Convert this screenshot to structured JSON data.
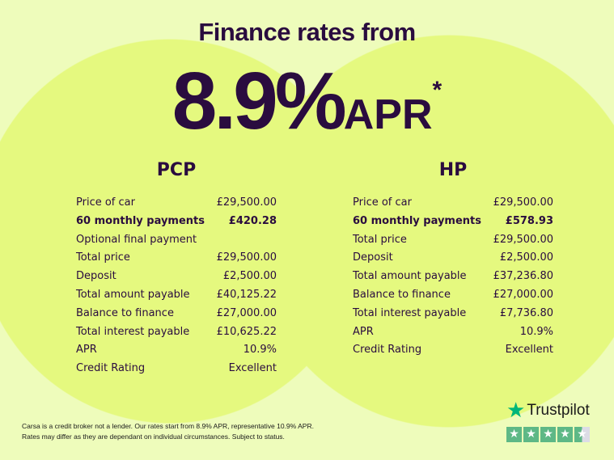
{
  "header": {
    "title": "Finance rates from",
    "rate": "8.9%",
    "apr": "APR",
    "asterisk": "*"
  },
  "pcp": {
    "title": "PCP",
    "rows": [
      {
        "label": "Price of car",
        "value": "£29,500.00"
      },
      {
        "label": "60 monthly payments",
        "value": "£420.28",
        "bold": true
      },
      {
        "label": "Optional final payment",
        "value": ""
      },
      {
        "label": "Total price",
        "value": "£29,500.00"
      },
      {
        "label": "Deposit",
        "value": "£2,500.00"
      },
      {
        "label": "Total amount payable",
        "value": "£40,125.22"
      },
      {
        "label": "Balance to finance",
        "value": "£27,000.00"
      },
      {
        "label": "Total interest payable",
        "value": "£10,625.22"
      },
      {
        "label": "APR",
        "value": "10.9%"
      },
      {
        "label": "Credit Rating",
        "value": "Excellent"
      }
    ]
  },
  "hp": {
    "title": "HP",
    "rows": [
      {
        "label": "Price of car",
        "value": "£29,500.00"
      },
      {
        "label": "60 monthly payments",
        "value": "£578.93",
        "bold": true
      },
      {
        "label": "Total price",
        "value": "£29,500.00"
      },
      {
        "label": "Deposit",
        "value": "£2,500.00"
      },
      {
        "label": "Total amount payable",
        "value": "£37,236.80"
      },
      {
        "label": "Balance to finance",
        "value": "£27,000.00"
      },
      {
        "label": "Total interest payable",
        "value": "£7,736.80"
      },
      {
        "label": "APR",
        "value": "10.9%"
      },
      {
        "label": "Credit Rating",
        "value": "Excellent"
      }
    ]
  },
  "disclaimer": {
    "line1": "Carsa is a credit broker not a lender. Our rates start from 8.9% APR, representative 10.9% APR.",
    "line2": "Rates may differ as they are dependant on individual circumstances. Subject to status."
  },
  "trustpilot": {
    "name": "Trustpilot",
    "rating_stars": 4.5,
    "star_icon": "star-icon",
    "color": "#00b67a"
  },
  "colors": {
    "background": "#eefcbb",
    "circle": "#e5f97f",
    "text": "#2a0c3f"
  }
}
